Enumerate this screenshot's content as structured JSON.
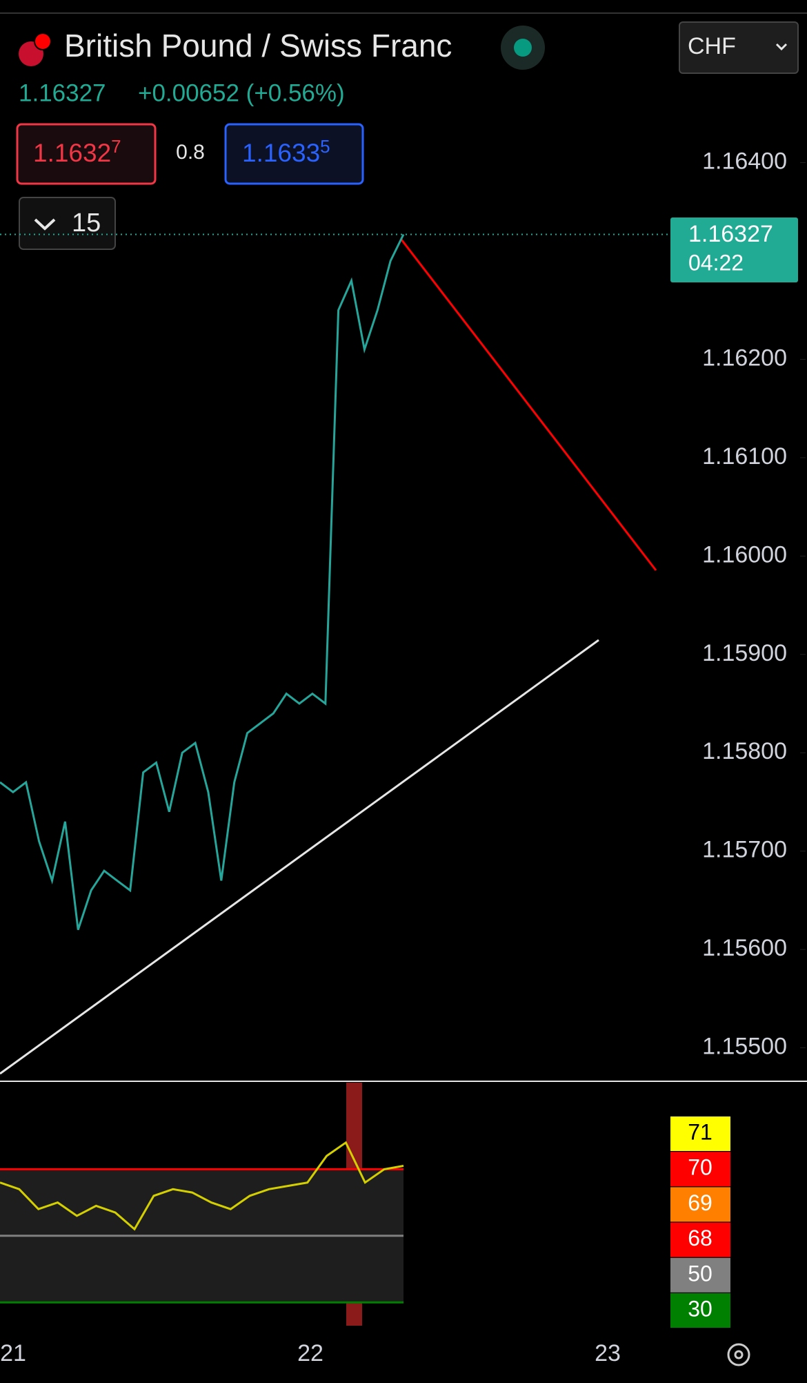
{
  "header": {
    "title": "British Pound / Swiss Franc",
    "price": "1.16327",
    "change": "+0.00652 (+0.56%)",
    "currency": "CHF"
  },
  "trade": {
    "sell_main": "1.1632",
    "sell_sup": "7",
    "spread": "0.8",
    "buy_main": "1.1633",
    "buy_sup": "5"
  },
  "interval": "15",
  "price_tag": {
    "price": "1.16327",
    "countdown": "04:22"
  },
  "chart_data": {
    "type": "line",
    "color": "#26a69a",
    "values": [
      1.1577,
      1.1576,
      1.1577,
      1.1571,
      1.1567,
      1.1573,
      1.1562,
      1.1566,
      1.1568,
      1.1567,
      1.1566,
      1.1578,
      1.1579,
      1.1574,
      1.158,
      1.1581,
      1.1576,
      1.1567,
      1.1577,
      1.1582,
      1.1583,
      1.1584,
      1.1586,
      1.1585,
      1.1586,
      1.1585,
      1.1625,
      1.1628,
      1.1621,
      1.1625,
      1.163,
      1.16327
    ],
    "ylim": [
      1.15466,
      1.16552
    ],
    "yticks": [
      {
        "value": 1.164,
        "label": "1.16400"
      },
      {
        "value": 1.162,
        "label": "1.16200"
      },
      {
        "value": 1.161,
        "label": "1.16100"
      },
      {
        "value": 1.16,
        "label": "1.16000"
      },
      {
        "value": 1.159,
        "label": "1.15900"
      },
      {
        "value": 1.158,
        "label": "1.15800"
      },
      {
        "value": 1.157,
        "label": "1.15700"
      },
      {
        "value": 1.156,
        "label": "1.15600"
      },
      {
        "value": 1.155,
        "label": "1.15500"
      }
    ],
    "xlabels": [
      "21",
      "22",
      "23"
    ]
  },
  "rsi": {
    "type": "line",
    "color": "#d4d000",
    "values": [
      66,
      64,
      58,
      60,
      56,
      59,
      57,
      52,
      62,
      64,
      63,
      60,
      58,
      62,
      64,
      65,
      66,
      74,
      78,
      66,
      70,
      71
    ],
    "ylim": [
      23,
      96
    ],
    "levels": [
      {
        "value": 71,
        "color": "#ffff00"
      },
      {
        "value": 70,
        "color": "#ff0000"
      },
      {
        "value": 69,
        "color": "#ff8000"
      },
      {
        "value": 68,
        "color": "#ff0000"
      },
      {
        "value": 50,
        "color": "#808080"
      },
      {
        "value": 30,
        "color": "#008000"
      }
    ]
  }
}
